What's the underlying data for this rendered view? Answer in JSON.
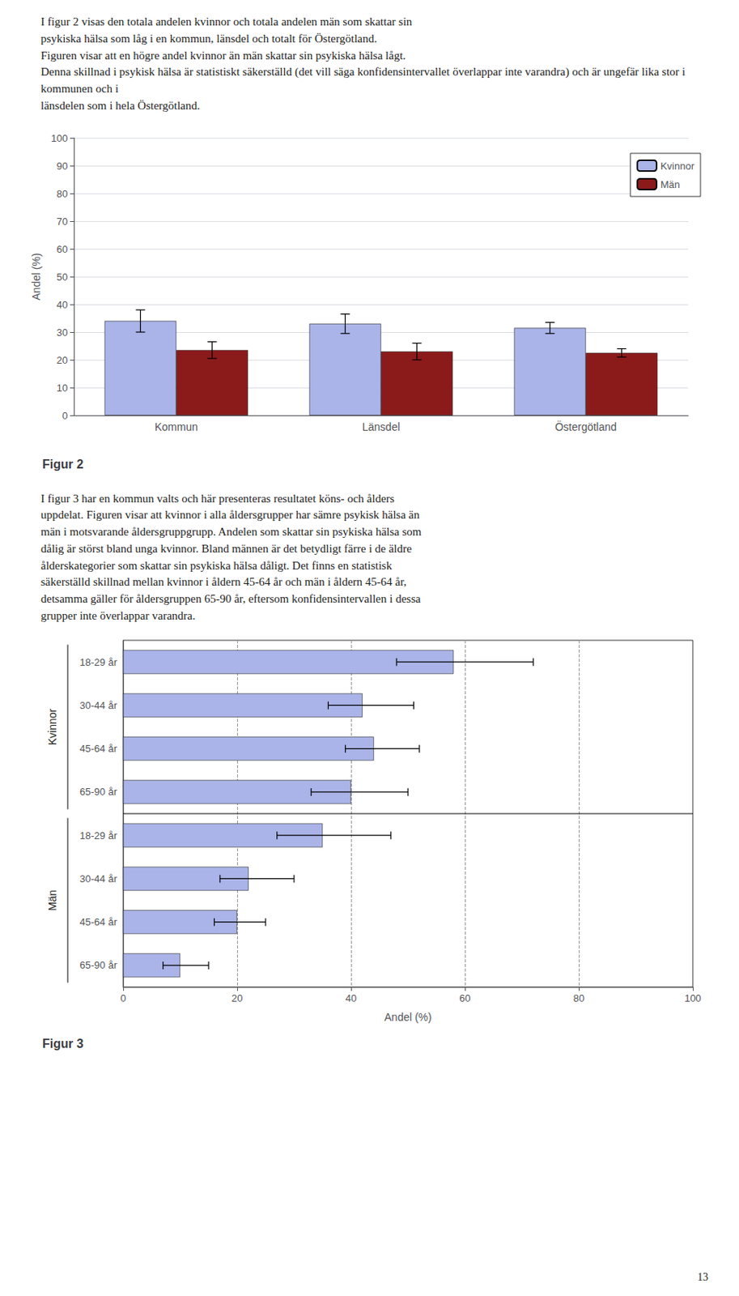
{
  "text_blocks": [
    "I figur 2 visas den totala andelen kvinnor och totala andelen män som skattar sin\npsykiska hälsa som låg i en kommun, länsdel och totalt för Östergötland.\nFiguren visar att en högre andel kvinnor än män skattar sin psykiska hälsa lågt.\nDenna skillnad i psykisk hälsa är statistiskt säkerställd (det vill säga konfidensintervallet överlappar inte varandra) och är ungefär lika stor i kommunen och i\nlänsdelen som i hela Östergötland.",
    "I figur 3 har en kommun valts och här presenteras resultatet köns- och ålders\nuppdelat. Figuren visar att kvinnor i alla åldersgrupper har sämre psykisk hälsa än\nmän i motsvarande åldersgruppgrupp. Andelen som skattar sin psykiska hälsa som\ndålig är störst bland unga kvinnor. Bland männen är det betydligt färre i de äldre\nålderskategorier som skattar sin psykiska hälsa dåligt. Det finns en statistisk\nsäkerställd skillnad mellan kvinnor i åldern 45-64 år och män i åldern 45-64 år,\ndetsamma gäller för åldersgruppen 65-90 år, eftersom konfidensintervallen i dessa\ngrupper inte överlappar varandra."
  ],
  "page_number": "13",
  "chart_data": [
    {
      "type": "bar",
      "title": "Figur 2",
      "categories": [
        "Kommun",
        "Länsdel",
        "Östergötland"
      ],
      "series": [
        {
          "name": "Kvinnor",
          "color": "#aab4e8",
          "values": [
            34.0,
            33.0,
            31.5
          ],
          "errors": [
            4.0,
            3.5,
            2.0
          ]
        },
        {
          "name": "Män",
          "color": "#8b1a1a",
          "values": [
            23.5,
            23.0,
            22.5
          ],
          "errors": [
            3.0,
            3.0,
            1.5
          ]
        }
      ],
      "ylabel": "Andel (%)",
      "ylim": [
        0,
        100
      ],
      "yticks": [
        0,
        10,
        20,
        30,
        40,
        50,
        60,
        70,
        80,
        90,
        100
      ],
      "grid": true,
      "legend": "upper right"
    },
    {
      "type": "bar",
      "orientation": "horizontal",
      "title": "Figur 3",
      "categories": [
        "18-29 år",
        "30-44 år",
        "45-64 år",
        "65-90 år",
        "18-29 år",
        "30-44 år",
        "45-64 år",
        "65-90 år"
      ],
      "groups": [
        "Kvinnor",
        "Kvinnor",
        "Kvinnor",
        "Kvinnor",
        "Män",
        "Män",
        "Män",
        "Män"
      ],
      "values": [
        58.0,
        42.0,
        44.0,
        40.0,
        35.0,
        22.0,
        20.0,
        10.0
      ],
      "errors_low": [
        10.0,
        6.0,
        5.0,
        7.0,
        8.0,
        5.0,
        4.0,
        3.0
      ],
      "errors_high": [
        14.0,
        9.0,
        8.0,
        10.0,
        12.0,
        8.0,
        5.0,
        5.0
      ],
      "color": "#aab4e8",
      "xlabel": "Andel (%)",
      "xlim": [
        0,
        100
      ],
      "xticks": [
        0,
        20,
        40,
        60,
        80,
        100
      ],
      "grid": true
    }
  ]
}
